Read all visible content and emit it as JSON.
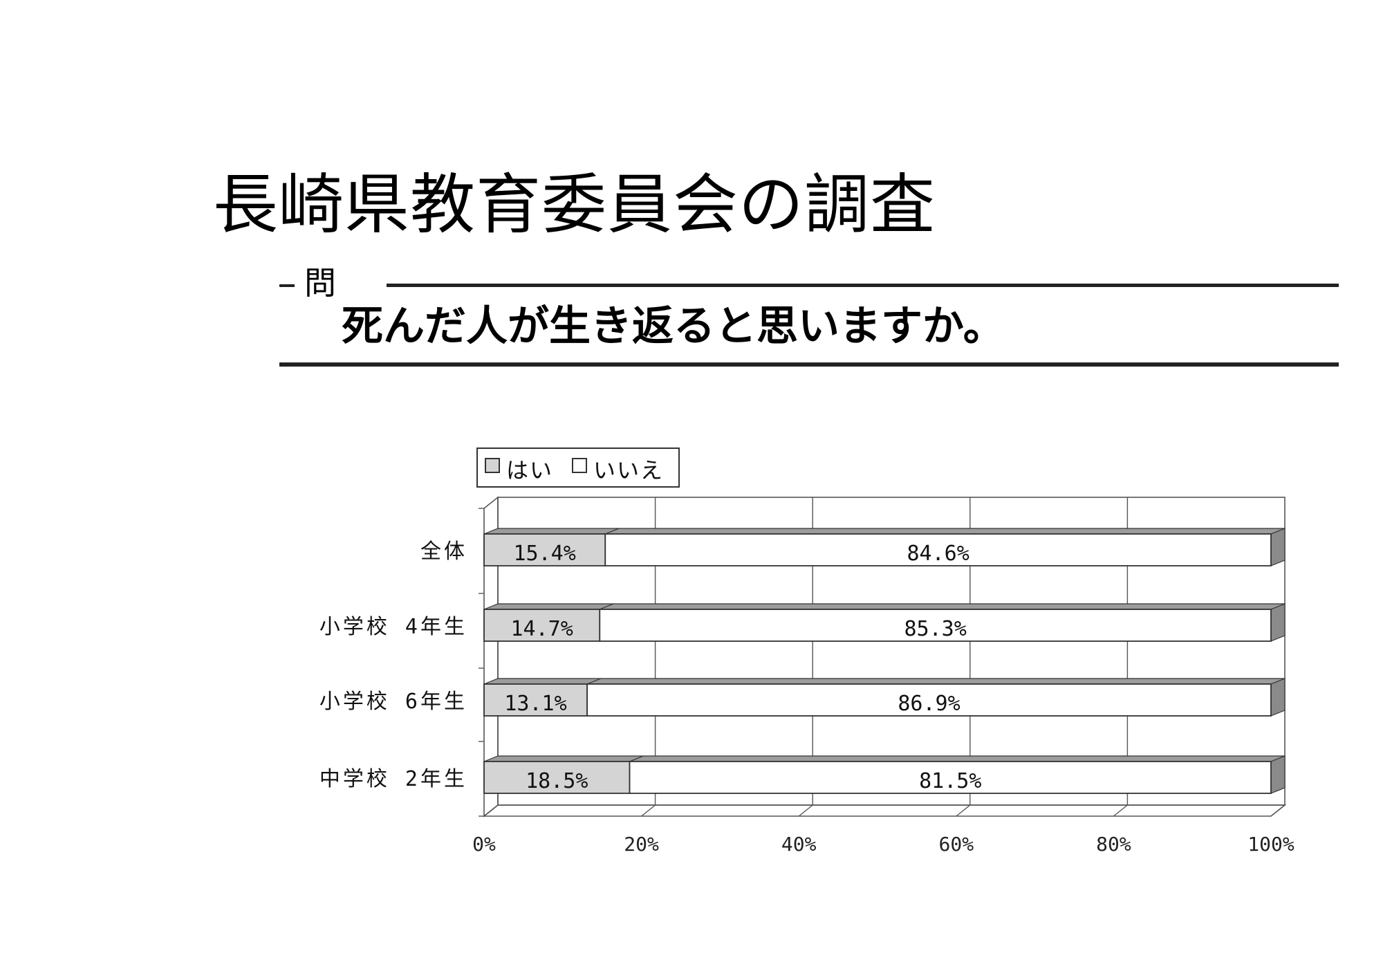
{
  "slide": {
    "title": "長崎県教育委員会の調査",
    "question_tag": "問",
    "question": "死んだ人が生き返ると思いますか。"
  },
  "colors": {
    "yes_fill": "#d4d4d4",
    "no_fill": "#ffffff",
    "bar_side": "#8a8a8a",
    "bar_top": "#9c9c9c",
    "line": "#333333",
    "grid": "#555555"
  },
  "chart_data": {
    "type": "bar",
    "orientation": "horizontal",
    "stacked": true,
    "percent_stacked": true,
    "style": "3d",
    "categories": [
      "全体",
      "小学校 4年生",
      "小学校 6年生",
      "中学校 2年生"
    ],
    "series": [
      {
        "name": "はい",
        "values": [
          15.4,
          14.7,
          13.1,
          18.5
        ],
        "labels": [
          "15.4%",
          "14.7%",
          "13.1%",
          "18.5%"
        ]
      },
      {
        "name": "いいえ",
        "values": [
          84.6,
          85.3,
          86.9,
          81.5
        ],
        "labels": [
          "84.6%",
          "85.3%",
          "86.9%",
          "81.5%"
        ]
      }
    ],
    "xlim": [
      0,
      100
    ],
    "xticks": [
      "0%",
      "20%",
      "40%",
      "60%",
      "80%",
      "100%"
    ],
    "grid": true,
    "legend": "top-left"
  }
}
